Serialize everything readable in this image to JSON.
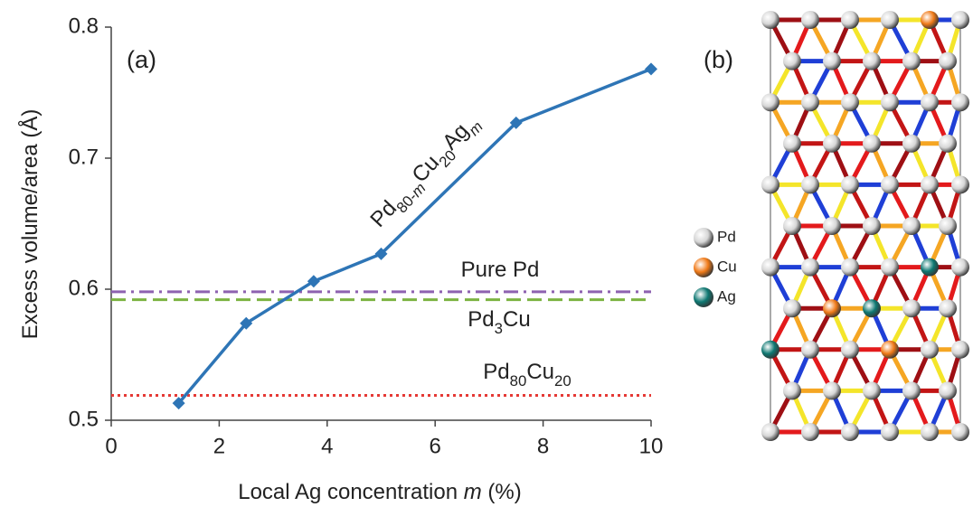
{
  "chart_data": {
    "type": "line",
    "panel_label": "(a)",
    "x_label": [
      {
        "text": "Local Ag concentration "
      },
      {
        "text": "m",
        "italic": true
      },
      {
        "text": " (%)"
      }
    ],
    "y_label": [
      {
        "text": "Excess volume/area (Å)"
      }
    ],
    "xlim": [
      0,
      10
    ],
    "xticks": [
      0,
      2,
      4,
      6,
      8,
      10
    ],
    "ylim": [
      0.5,
      0.8
    ],
    "yticks": [
      0.5,
      0.6,
      0.7,
      0.8
    ],
    "series": [
      {
        "label": [
          {
            "text": "Pd"
          },
          {
            "text": "80-",
            "sub": true
          },
          {
            "text": "m",
            "sub": true,
            "italic": true
          },
          {
            "text": "Cu"
          },
          {
            "text": "20",
            "sub": true
          },
          {
            "text": "Ag"
          },
          {
            "text": "m",
            "sub": true,
            "italic": true
          }
        ],
        "color": "#2e75b6",
        "marker": "diamond",
        "x": [
          1.25,
          2.5,
          3.75,
          5,
          7.5,
          10
        ],
        "values": [
          0.513,
          0.574,
          0.606,
          0.627,
          0.727,
          0.768
        ]
      }
    ],
    "reference_lines": [
      {
        "label": [
          {
            "text": "Pure Pd"
          }
        ],
        "value": 0.598,
        "color": "#8e62b0",
        "dash": "dashdot"
      },
      {
        "label": [
          {
            "text": "Pd"
          },
          {
            "text": "3",
            "sub": true
          },
          {
            "text": "Cu"
          }
        ],
        "value": 0.592,
        "color": "#7cb342",
        "dash": "dashed"
      },
      {
        "label": [
          {
            "text": "Pd"
          },
          {
            "text": "80",
            "sub": true
          },
          {
            "text": "Cu"
          },
          {
            "text": "20",
            "sub": true
          }
        ],
        "value": 0.519,
        "color": "#e53935",
        "dash": "dotted"
      }
    ]
  },
  "structure": {
    "panel_label": "(b)",
    "legend": [
      {
        "label": "Pd",
        "color": "#d6d6d6"
      },
      {
        "label": "Cu",
        "color": "#f07a18"
      },
      {
        "label": "Ag",
        "color": "#0e7872"
      }
    ]
  }
}
